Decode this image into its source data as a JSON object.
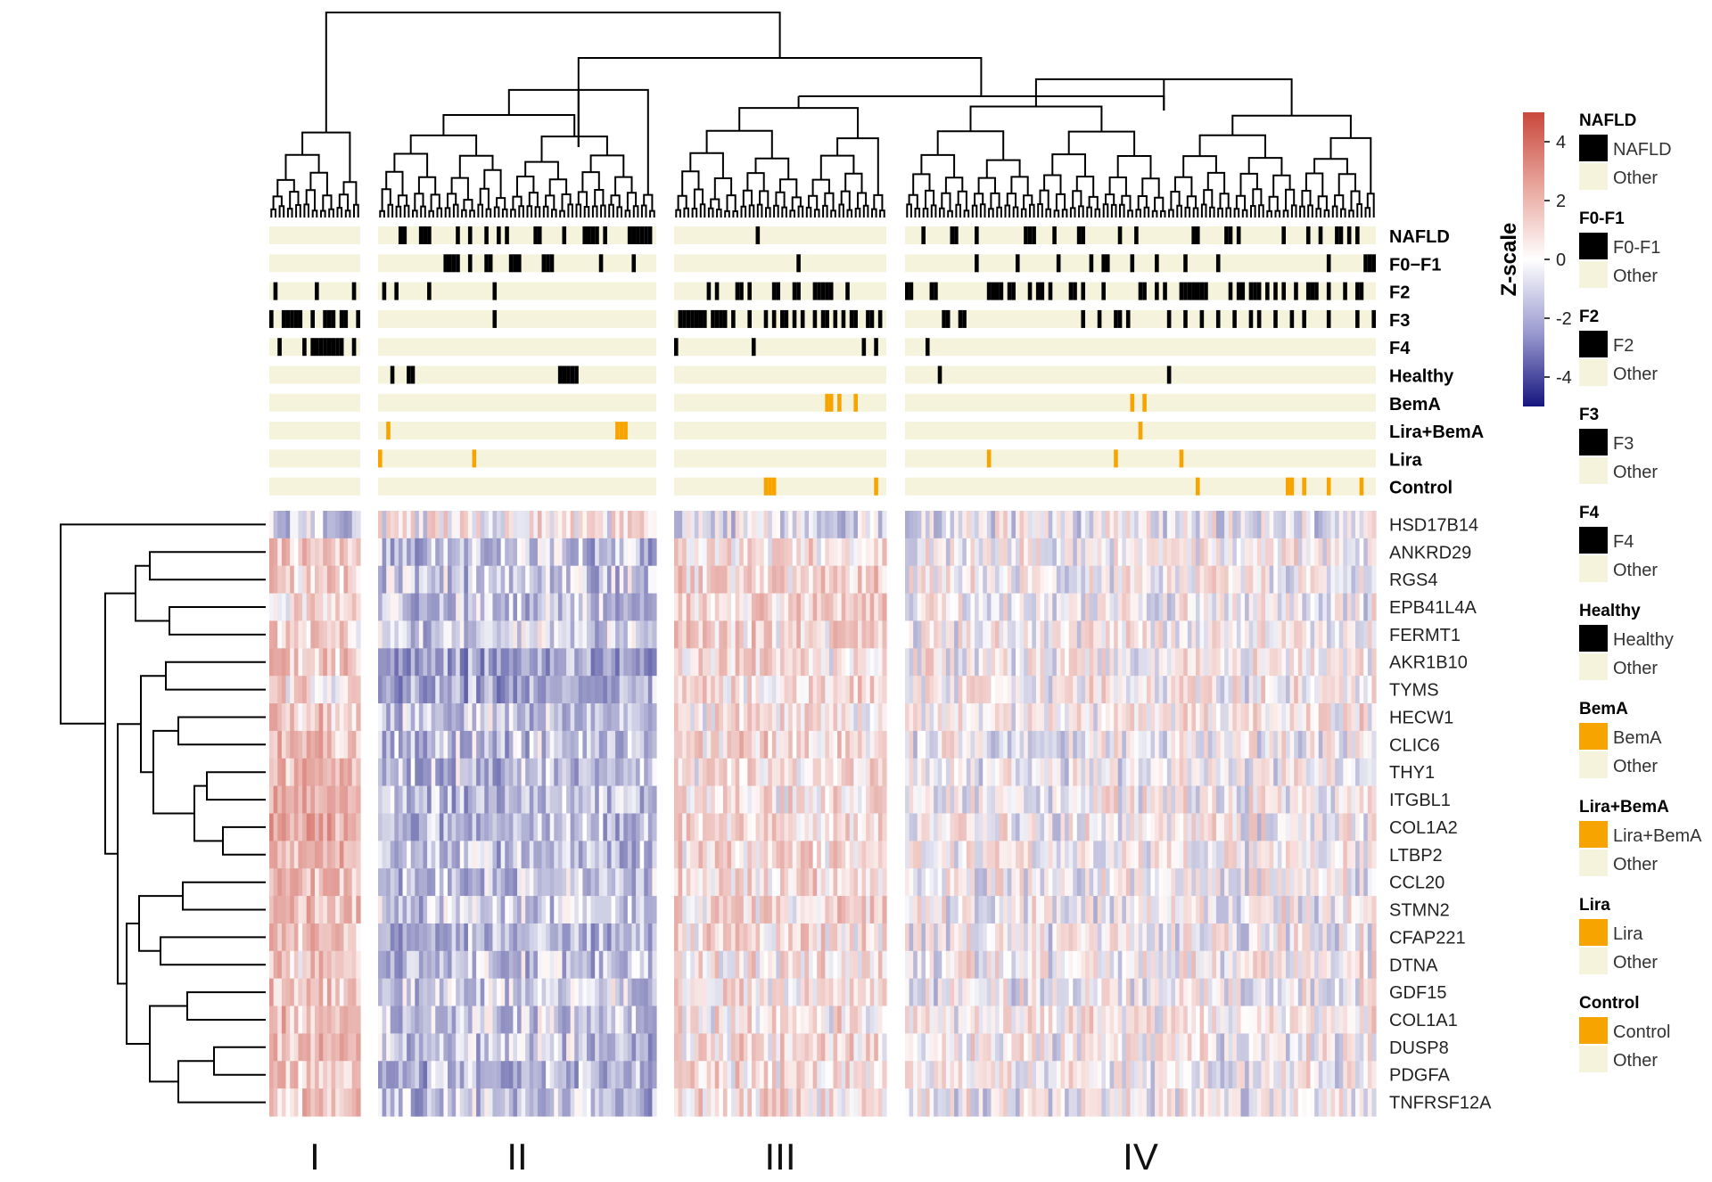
{
  "chart_data": {
    "type": "heatmap",
    "title": "",
    "colorbar": {
      "title": "Z-scale",
      "ticks": [
        4,
        2,
        0,
        -2,
        -4
      ],
      "range": [
        -5,
        5
      ],
      "low_color": "#15157f",
      "mid_color": "#ffffff",
      "high_color": "#c9483c"
    },
    "clusters": [
      {
        "label": "I",
        "n_samples": 22
      },
      {
        "label": "II",
        "n_samples": 68
      },
      {
        "label": "III",
        "n_samples": 52
      },
      {
        "label": "IV",
        "n_samples": 115
      }
    ],
    "annotation_colors": {
      "background": "#f5f3dc",
      "black_marker": "#000000",
      "orange_marker": "#f7a400"
    },
    "annotations": [
      {
        "name": "NAFLD",
        "color": "black",
        "marks": [
          [],
          [
            5,
            6,
            10,
            11,
            12,
            19,
            22,
            26,
            29,
            31,
            38,
            39,
            45,
            50,
            51,
            52,
            53,
            55,
            61,
            62,
            63,
            64,
            65,
            66
          ],
          [
            20
          ],
          [
            4,
            11,
            12,
            17,
            29,
            30,
            31,
            36,
            42,
            43,
            52,
            56,
            70,
            71,
            78,
            79,
            81,
            92,
            98,
            101,
            105,
            106,
            108,
            110
          ]
        ]
      },
      {
        "name": "F0−F1",
        "color": "black",
        "marks": [
          [],
          [
            16,
            17,
            18,
            19,
            22,
            26,
            27,
            32,
            33,
            34,
            40,
            41,
            42,
            54,
            62
          ],
          [
            30
          ],
          [
            17,
            27,
            37,
            45,
            48,
            49,
            55,
            61,
            68,
            76,
            103,
            112,
            113,
            114
          ]
        ]
      },
      {
        "name": "F2",
        "color": "black",
        "marks": [
          [
            1,
            11,
            20
          ],
          [
            1,
            4,
            12,
            28
          ],
          [
            8,
            10,
            15,
            16,
            18,
            24,
            25,
            29,
            30,
            34,
            35,
            36,
            37,
            38,
            42
          ],
          [
            0,
            1,
            6,
            7,
            20,
            21,
            22,
            23,
            25,
            26,
            30,
            32,
            33,
            35,
            40,
            41,
            43,
            48,
            57,
            58,
            61,
            63,
            67,
            68,
            69,
            70,
            71,
            72,
            73,
            79,
            81,
            82,
            84,
            85,
            86,
            88,
            90,
            92,
            95,
            98,
            99,
            100,
            103,
            107,
            110,
            111
          ]
        ]
      },
      {
        "name": "F3",
        "color": "black",
        "marks": [
          [
            0,
            3,
            4,
            5,
            6,
            7,
            10,
            13,
            14,
            15,
            17,
            18,
            21
          ],
          [
            28
          ],
          [
            1,
            2,
            3,
            4,
            5,
            6,
            7,
            9,
            10,
            11,
            12,
            14,
            18,
            22,
            24,
            26,
            27,
            29,
            31,
            34,
            36,
            37,
            39,
            41,
            43,
            44,
            47,
            48,
            50
          ],
          [
            9,
            10,
            13,
            14,
            43,
            47,
            51,
            52,
            54,
            64,
            68,
            72,
            76,
            80,
            84,
            86,
            90,
            94,
            97,
            103,
            110,
            114
          ]
        ]
      },
      {
        "name": "F4",
        "color": "black",
        "marks": [
          [
            2,
            8,
            10,
            11,
            12,
            13,
            14,
            15,
            16,
            17,
            20
          ],
          [],
          [
            0,
            19,
            46,
            49
          ],
          [
            5
          ]
        ]
      },
      {
        "name": "Healthy",
        "color": "black",
        "marks": [
          [],
          [
            3,
            7,
            8,
            44,
            45,
            46,
            47,
            48
          ],
          [],
          [
            8,
            64
          ]
        ]
      },
      {
        "name": "BemA",
        "color": "orange",
        "marks": [
          [],
          [],
          [
            37,
            38,
            40,
            44
          ],
          [
            55,
            58
          ]
        ]
      },
      {
        "name": "Lira+BemA",
        "color": "orange",
        "marks": [
          [],
          [
            2,
            58,
            59,
            60
          ],
          [],
          [
            57
          ]
        ]
      },
      {
        "name": "Lira",
        "color": "orange",
        "marks": [
          [],
          [
            0,
            23
          ],
          [],
          [
            20,
            51,
            67
          ]
        ]
      },
      {
        "name": "Control",
        "color": "orange",
        "marks": [
          [],
          [],
          [
            22,
            23,
            24,
            49
          ],
          [
            71,
            93,
            94,
            97,
            103,
            111
          ]
        ]
      }
    ],
    "genes": [
      {
        "name": "HSD17B14",
        "means": [
          -0.8,
          0.2,
          -0.6,
          -0.2
        ]
      },
      {
        "name": "ANKRD29",
        "means": [
          1.2,
          -1.0,
          0.6,
          0.1
        ]
      },
      {
        "name": "RGS4",
        "means": [
          1.1,
          -0.8,
          0.7,
          0.1
        ]
      },
      {
        "name": "EPB41L4A",
        "means": [
          0.6,
          -0.9,
          0.9,
          0.0
        ]
      },
      {
        "name": "FERMT1",
        "means": [
          0.9,
          -0.7,
          0.8,
          0.1
        ]
      },
      {
        "name": "AKR1B10",
        "means": [
          1.3,
          -1.6,
          0.6,
          0.2
        ]
      },
      {
        "name": "TYMS",
        "means": [
          0.6,
          -1.5,
          0.7,
          0.2
        ]
      },
      {
        "name": "HECW1",
        "means": [
          1.2,
          -0.9,
          0.4,
          0.3
        ]
      },
      {
        "name": "CLIC6",
        "means": [
          1.5,
          -1.0,
          0.7,
          0.0
        ]
      },
      {
        "name": "THY1",
        "means": [
          1.7,
          -1.1,
          0.6,
          0.0
        ]
      },
      {
        "name": "ITGBL1",
        "means": [
          1.9,
          -1.1,
          0.6,
          0.1
        ]
      },
      {
        "name": "COL1A2",
        "means": [
          2.0,
          -1.1,
          0.6,
          0.1
        ]
      },
      {
        "name": "LTBP2",
        "means": [
          1.8,
          -1.1,
          0.7,
          0.1
        ]
      },
      {
        "name": "CCL20",
        "means": [
          1.4,
          -1.0,
          0.8,
          0.1
        ]
      },
      {
        "name": "STMN2",
        "means": [
          1.6,
          -0.9,
          0.7,
          0.0
        ]
      },
      {
        "name": "CFAP221",
        "means": [
          1.2,
          -1.2,
          0.6,
          0.0
        ]
      },
      {
        "name": "DTNA",
        "means": [
          1.1,
          -1.0,
          0.5,
          0.1
        ]
      },
      {
        "name": "GDF15",
        "means": [
          1.2,
          -0.8,
          0.5,
          0.0
        ]
      },
      {
        "name": "COL1A1",
        "means": [
          1.4,
          -0.9,
          0.5,
          0.3
        ]
      },
      {
        "name": "DUSP8",
        "means": [
          1.3,
          -1.0,
          0.6,
          0.1
        ]
      },
      {
        "name": "PDGFA",
        "means": [
          1.2,
          -1.3,
          0.7,
          0.1
        ]
      },
      {
        "name": "TNFRSF12A",
        "means": [
          1.2,
          -1.0,
          0.6,
          0.0
        ]
      }
    ],
    "legend": [
      {
        "title": "NAFLD",
        "items": [
          {
            "label": "NAFLD",
            "color": "#000000"
          },
          {
            "label": "Other",
            "color": "#f5f3dc"
          }
        ]
      },
      {
        "title": "F0-F1",
        "items": [
          {
            "label": "F0-F1",
            "color": "#000000"
          },
          {
            "label": "Other",
            "color": "#f5f3dc"
          }
        ]
      },
      {
        "title": "F2",
        "items": [
          {
            "label": "F2",
            "color": "#000000"
          },
          {
            "label": "Other",
            "color": "#f5f3dc"
          }
        ]
      },
      {
        "title": "F3",
        "items": [
          {
            "label": "F3",
            "color": "#000000"
          },
          {
            "label": "Other",
            "color": "#f5f3dc"
          }
        ]
      },
      {
        "title": "F4",
        "items": [
          {
            "label": "F4",
            "color": "#000000"
          },
          {
            "label": "Other",
            "color": "#f5f3dc"
          }
        ]
      },
      {
        "title": "Healthy",
        "items": [
          {
            "label": "Healthy",
            "color": "#000000"
          },
          {
            "label": "Other",
            "color": "#f5f3dc"
          }
        ]
      },
      {
        "title": "BemA",
        "items": [
          {
            "label": "BemA",
            "color": "#f7a400"
          },
          {
            "label": "Other",
            "color": "#f5f3dc"
          }
        ]
      },
      {
        "title": "Lira+BemA",
        "items": [
          {
            "label": "Lira+BemA",
            "color": "#f7a400"
          },
          {
            "label": "Other",
            "color": "#f5f3dc"
          }
        ]
      },
      {
        "title": "Lira",
        "items": [
          {
            "label": "Lira",
            "color": "#f7a400"
          },
          {
            "label": "Other",
            "color": "#f5f3dc"
          }
        ]
      },
      {
        "title": "Control",
        "items": [
          {
            "label": "Control",
            "color": "#f7a400"
          },
          {
            "label": "Other",
            "color": "#f5f3dc"
          }
        ]
      }
    ]
  }
}
